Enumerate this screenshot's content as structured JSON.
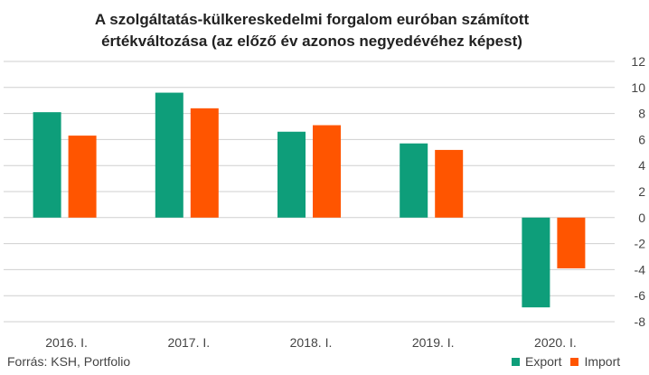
{
  "colors": {
    "export": "#0e9e7a",
    "import": "#ff5500",
    "grid": "#cfcfcf",
    "text": "#444444"
  },
  "chart_data": {
    "type": "bar",
    "title": [
      "A szolgáltatás-külkereskedelmi forgalom euróban számított",
      "értékváltozása (az előző év azonos negyedévéhez képest)"
    ],
    "categories": [
      "2016. I.",
      "2017. I.",
      "2018. I.",
      "2019. I.",
      "2020. I."
    ],
    "series": [
      {
        "name": "Export",
        "values": [
          8.1,
          9.6,
          6.6,
          5.7,
          -6.9
        ]
      },
      {
        "name": "Import",
        "values": [
          6.3,
          8.4,
          7.1,
          5.2,
          -3.9
        ]
      }
    ],
    "ylim": [
      -8,
      12
    ],
    "yticks": [
      12,
      10,
      8,
      6,
      4,
      2,
      0,
      -2,
      -4,
      -6,
      -8
    ],
    "grid": true,
    "y_axis_position": "right",
    "legend_position": "bottom-right"
  },
  "source": "Forrás: KSH, Portfolio"
}
